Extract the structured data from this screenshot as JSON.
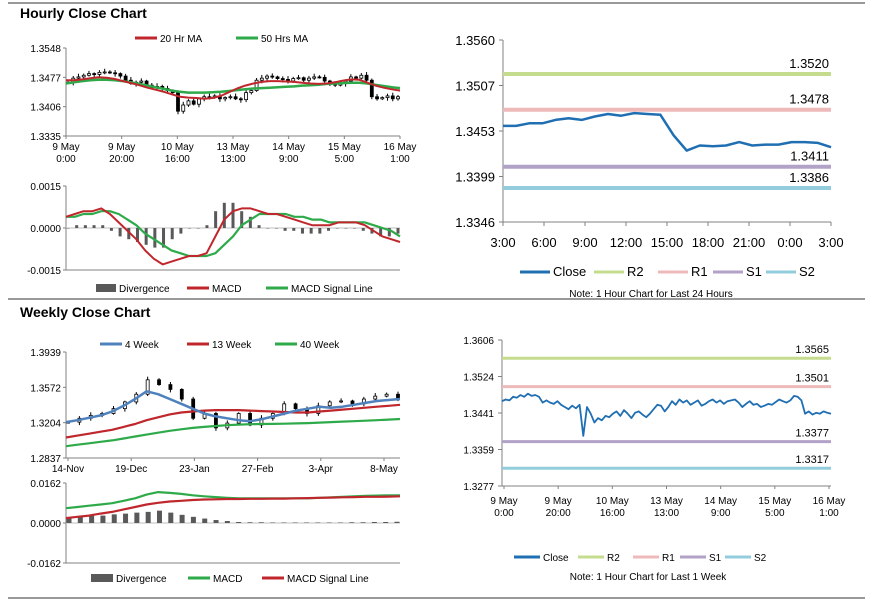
{
  "sections": {
    "hourly_title": "Hourly Close Chart",
    "weekly_title": "Weekly Close Chart"
  },
  "colors": {
    "ma20": "#c0272d",
    "ma50": "#2eaa4a",
    "macd_red": "#c0272d",
    "signal_green": "#2eaa4a",
    "divergence": "#595959",
    "close": "#1f6fb2",
    "r2": "#c5dc8e",
    "r1": "#edb9b9",
    "s1": "#b3a2c7",
    "s2": "#93cddd",
    "wk4": "#4f81bd",
    "wk13": "#c0272d",
    "wk40": "#2eaa4a"
  },
  "chart_data": [
    {
      "id": "hourly_price",
      "type": "line",
      "legend": [
        "20 Hr MA",
        "50 Hrs MA"
      ],
      "y_ticks": [
        "1.3548",
        "1.3477",
        "1.3406",
        "1.3335"
      ],
      "ylim": [
        1.3335,
        1.3548
      ],
      "x_tick_line1": [
        "9 May",
        "9 May",
        "10 May",
        "13 May",
        "14 May",
        "15 May",
        "16 May"
      ],
      "x_tick_line2": [
        "0:00",
        "20:00",
        "16:00",
        "13:00",
        "9:00",
        "5:00",
        "1:00"
      ],
      "candles": [
        1.3465,
        1.3475,
        1.3478,
        1.3482,
        1.3486,
        1.3484,
        1.3489,
        1.349,
        1.3488,
        1.3486,
        1.348,
        1.347,
        1.3462,
        1.3465,
        1.3468,
        1.3458,
        1.3452,
        1.3455,
        1.345,
        1.3445,
        1.344,
        1.3395,
        1.341,
        1.342,
        1.3412,
        1.3425,
        1.343,
        1.3428,
        1.3432,
        1.3425,
        1.3428,
        1.343,
        1.3425,
        1.3423,
        1.344,
        1.3445,
        1.347,
        1.3475,
        1.348,
        1.3478,
        1.3474,
        1.3472,
        1.3468,
        1.3474,
        1.3476,
        1.347,
        1.3475,
        1.3478,
        1.3477,
        1.3468,
        1.3462,
        1.3458,
        1.3462,
        1.3468,
        1.3478,
        1.3475,
        1.3482,
        1.347,
        1.343,
        1.3425,
        1.3428,
        1.3432,
        1.3425,
        1.343
      ],
      "ma20": [
        1.347,
        1.347,
        1.3472,
        1.3475,
        1.3477,
        1.3476,
        1.3473,
        1.3468,
        1.3463,
        1.3458,
        1.3452,
        1.3447,
        1.3442,
        1.3436,
        1.343,
        1.3428,
        1.3427,
        1.3425,
        1.3427,
        1.3432,
        1.3441,
        1.345,
        1.3457,
        1.3462,
        1.3466,
        1.3468,
        1.3468,
        1.3467,
        1.3466,
        1.3464,
        1.3462,
        1.3461,
        1.3462,
        1.3465,
        1.3469,
        1.3472,
        1.3471,
        1.3464,
        1.3457,
        1.3452,
        1.3448,
        1.3445
      ],
      "ma50": [
        1.3462,
        1.3465,
        1.3468,
        1.347,
        1.3471,
        1.3471,
        1.347,
        1.3468,
        1.3465,
        1.3461,
        1.3457,
        1.3453,
        1.3449,
        1.3445,
        1.3442,
        1.344,
        1.344,
        1.344,
        1.3441,
        1.3442,
        1.3444,
        1.3446,
        1.3448,
        1.345,
        1.3451,
        1.3452,
        1.3453,
        1.3454,
        1.3455,
        1.3457,
        1.3458,
        1.3459,
        1.3461,
        1.3462,
        1.3463,
        1.3464,
        1.3464,
        1.3462,
        1.3459,
        1.3456,
        1.3453,
        1.3451
      ]
    },
    {
      "id": "hourly_macd",
      "type": "line",
      "legend": [
        "Divergence",
        "MACD",
        "MACD Signal Line"
      ],
      "y_ticks": [
        "0.0015",
        "0.0000",
        "-0.0015"
      ],
      "ylim": [
        -0.0015,
        0.0015
      ],
      "macd": [
        0.0004,
        0.0005,
        0.0006,
        0.0006,
        0.0007,
        0.0005,
        0.0002,
        -0.0001,
        -0.0004,
        -0.0008,
        -0.0011,
        -0.0013,
        -0.0012,
        -0.0011,
        -0.001,
        -0.001,
        -0.0009,
        -0.0003,
        0.0003,
        0.0006,
        0.0007,
        0.0007,
        0.0006,
        0.0005,
        0.0005,
        0.0004,
        0.0003,
        0.0002,
        0.0001,
        0.0001,
        0.0001,
        0.0002,
        0.0002,
        0.0002,
        0.0001,
        -0.0001,
        -0.0003,
        -0.0004,
        -0.0005
      ],
      "signal": [
        0.0004,
        0.0004,
        0.0005,
        0.0005,
        0.0006,
        0.0006,
        0.0005,
        0.0003,
        0.0001,
        -0.0002,
        -0.0004,
        -0.0006,
        -0.0008,
        -0.0009,
        -0.001,
        -0.001,
        -0.001,
        -0.0009,
        -0.0006,
        -0.0003,
        0.0001,
        0.0003,
        0.0005,
        0.0005,
        0.0005,
        0.0005,
        0.0004,
        0.0004,
        0.0003,
        0.0003,
        0.0002,
        0.0002,
        0.0002,
        0.0002,
        0.0002,
        0.0001,
        0.0,
        -0.0001,
        -0.0003
      ],
      "divergence": [
        0.0,
        0.0001,
        0.0001,
        0.0001,
        0.0001,
        -0.0001,
        -0.0003,
        -0.0004,
        -0.0005,
        -0.0006,
        -0.0007,
        -0.0007,
        -0.0004,
        -0.0002,
        0.0,
        0.0,
        0.0001,
        0.0006,
        0.0009,
        0.0009,
        0.0006,
        0.0004,
        0.0001,
        0.0,
        0.0,
        -0.0001,
        -0.0001,
        -0.0002,
        -0.0002,
        -0.0002,
        -0.0001,
        0.0,
        0.0,
        0.0,
        -0.0001,
        -0.0002,
        -0.0003,
        -0.0003,
        -0.0002
      ]
    },
    {
      "id": "hourly_levels",
      "type": "line",
      "y_ticks": [
        "1.3560",
        "1.3507",
        "1.3453",
        "1.3399",
        "1.3346"
      ],
      "ylim": [
        1.3346,
        1.356
      ],
      "x_ticks": [
        "3:00",
        "6:00",
        "9:00",
        "12:00",
        "15:00",
        "18:00",
        "21:00",
        "0:00",
        "3:00"
      ],
      "close": [
        1.3459,
        1.3459,
        1.3462,
        1.3462,
        1.3466,
        1.3468,
        1.3466,
        1.347,
        1.3473,
        1.3471,
        1.3474,
        1.3473,
        1.3472,
        1.3448,
        1.343,
        1.3436,
        1.3435,
        1.3436,
        1.344,
        1.3436,
        1.3437,
        1.3437,
        1.344,
        1.344,
        1.3439,
        1.3434
      ],
      "levels": {
        "R2": 1.352,
        "R1": 1.3478,
        "S1": 1.3411,
        "S2": 1.3386
      },
      "level_labels": {
        "R2": "1.3520",
        "R1": "1.3478",
        "S1": "1.3411",
        "S2": "1.3386"
      },
      "legend": [
        "Close",
        "R2",
        "R1",
        "S1",
        "S2"
      ],
      "note": "Note: 1 Hour Chart for Last 24 Hours"
    },
    {
      "id": "weekly_price",
      "type": "line",
      "legend": [
        "4 Week",
        "13 Week",
        "40 Week"
      ],
      "y_ticks": [
        "1.3939",
        "1.3572",
        "1.3204",
        "1.2837"
      ],
      "ylim": [
        1.2837,
        1.3939
      ],
      "x_ticks": [
        "14-Nov",
        "19-Dec",
        "23-Jan",
        "27-Feb",
        "3-Apr",
        "8-May"
      ],
      "candles": [
        1.321,
        1.325,
        1.328,
        1.33,
        1.335,
        1.342,
        1.35,
        1.365,
        1.36,
        1.355,
        1.345,
        1.325,
        1.33,
        1.315,
        1.32,
        1.33,
        1.318,
        1.325,
        1.33,
        1.34,
        1.335,
        1.33,
        1.338,
        1.342,
        1.343,
        1.34,
        1.345,
        1.348,
        1.35,
        1.346
      ],
      "wk4": [
        1.321,
        1.323,
        1.3255,
        1.328,
        1.332,
        1.338,
        1.345,
        1.353,
        1.35,
        1.345,
        1.34,
        1.335,
        1.33,
        1.327,
        1.325,
        1.323,
        1.322,
        1.324,
        1.327,
        1.33,
        1.333,
        1.335,
        1.337,
        1.336,
        1.337,
        1.339,
        1.341,
        1.343,
        1.344,
        1.345
      ],
      "wk13": [
        1.305,
        1.307,
        1.309,
        1.311,
        1.313,
        1.316,
        1.319,
        1.323,
        1.326,
        1.329,
        1.331,
        1.332,
        1.333,
        1.3335,
        1.3335,
        1.3335,
        1.333,
        1.3325,
        1.332,
        1.3315,
        1.331,
        1.331,
        1.332,
        1.333,
        1.334,
        1.335,
        1.336,
        1.337,
        1.338,
        1.339
      ],
      "wk40": [
        1.296,
        1.2975,
        1.299,
        1.3005,
        1.302,
        1.304,
        1.306,
        1.308,
        1.31,
        1.312,
        1.3135,
        1.315,
        1.316,
        1.317,
        1.3178,
        1.3184,
        1.3188,
        1.319,
        1.3192,
        1.3194,
        1.3197,
        1.32,
        1.3205,
        1.321,
        1.3215,
        1.322,
        1.3225,
        1.323,
        1.3236,
        1.3242
      ]
    },
    {
      "id": "weekly_macd",
      "type": "bar",
      "legend": [
        "Divergence",
        "MACD",
        "MACD Signal Line"
      ],
      "y_ticks": [
        "0.0162",
        "0.0000",
        "-0.0162"
      ],
      "ylim": [
        -0.0162,
        0.0162
      ],
      "macd": [
        0.006,
        0.0065,
        0.007,
        0.0075,
        0.008,
        0.009,
        0.01,
        0.0115,
        0.0125,
        0.0122,
        0.0118,
        0.0112,
        0.0108,
        0.0105,
        0.0102,
        0.01,
        0.01,
        0.01,
        0.01,
        0.01,
        0.01,
        0.01,
        0.0102,
        0.0104,
        0.0106,
        0.0108,
        0.011,
        0.0111,
        0.0112,
        0.0112
      ],
      "signal": [
        0.002,
        0.0025,
        0.003,
        0.0038,
        0.0045,
        0.0055,
        0.0065,
        0.0075,
        0.0082,
        0.0087,
        0.009,
        0.0093,
        0.0095,
        0.0096,
        0.0097,
        0.0097,
        0.0098,
        0.0098,
        0.0099,
        0.0099,
        0.01,
        0.0101,
        0.0102,
        0.0103,
        0.0104,
        0.0105,
        0.0106,
        0.0106,
        0.0107,
        0.0108
      ],
      "divergence": [
        0.002,
        0.0025,
        0.003,
        0.003,
        0.0035,
        0.0038,
        0.0042,
        0.0045,
        0.005,
        0.0042,
        0.0033,
        0.0025,
        0.0018,
        0.0012,
        0.0008,
        0.0004,
        0.0003,
        0.0003,
        0.0002,
        0.0002,
        0.0002,
        0.0002,
        0.0002,
        0.0002,
        0.0002,
        0.0003,
        0.0003,
        0.0004,
        0.0004,
        0.0005
      ]
    },
    {
      "id": "weekly_levels",
      "type": "line",
      "y_ticks": [
        "1.3606",
        "1.3524",
        "1.3441",
        "1.3359",
        "1.3277"
      ],
      "ylim": [
        1.3277,
        1.3606
      ],
      "x_tick_line1": [
        "9 May",
        "9 May",
        "10 May",
        "13 May",
        "14 May",
        "15 May",
        "16 May"
      ],
      "x_tick_line2": [
        "0:00",
        "20:00",
        "16:00",
        "13:00",
        "9:00",
        "5:00",
        "1:00"
      ],
      "close": [
        1.3468,
        1.3472,
        1.347,
        1.3478,
        1.3476,
        1.3482,
        1.3478,
        1.3485,
        1.348,
        1.3482,
        1.3478,
        1.3465,
        1.347,
        1.3465,
        1.3462,
        1.3468,
        1.346,
        1.3455,
        1.345,
        1.3458,
        1.3452,
        1.346,
        1.339,
        1.3455,
        1.344,
        1.342,
        1.343,
        1.3425,
        1.3435,
        1.3432,
        1.344,
        1.3445,
        1.3435,
        1.3448,
        1.344,
        1.343,
        1.3442,
        1.3445,
        1.3438,
        1.3432,
        1.344,
        1.345,
        1.346,
        1.3458,
        1.3445,
        1.3455,
        1.3468,
        1.346,
        1.3472,
        1.3465,
        1.347,
        1.346,
        1.3465,
        1.347,
        1.3458,
        1.3462,
        1.3468,
        1.3472,
        1.3465,
        1.347,
        1.3462,
        1.3468,
        1.347,
        1.3472,
        1.3465,
        1.3455,
        1.3462,
        1.3468,
        1.346,
        1.3462,
        1.3455,
        1.3458,
        1.3462,
        1.346,
        1.3466,
        1.3472,
        1.3468,
        1.3465,
        1.347,
        1.348,
        1.3478,
        1.347,
        1.344,
        1.3445,
        1.3438,
        1.3442,
        1.344,
        1.3445,
        1.3442,
        1.344
      ],
      "levels": {
        "R2": 1.3565,
        "R1": 1.3501,
        "S1": 1.3377,
        "S2": 1.3317
      },
      "level_labels": {
        "R2": "1.3565",
        "R1": "1.3501",
        "S1": "1.3377",
        "S2": "1.3317"
      },
      "legend": [
        "Close",
        "R2",
        "R1",
        "S1",
        "S2"
      ],
      "note": "Note: 1 Hour Chart for Last 1 Week"
    }
  ]
}
